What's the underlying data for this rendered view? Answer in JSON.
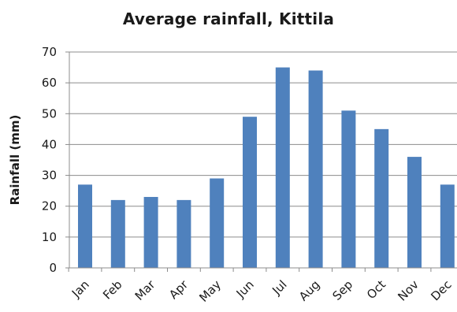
{
  "chart_data": {
    "type": "bar",
    "title": "Average rainfall, Kittila",
    "xlabel": "",
    "ylabel": "Rainfall (mm)",
    "categories": [
      "Jan",
      "Feb",
      "Mar",
      "Apr",
      "May",
      "Jun",
      "Jul",
      "Aug",
      "Sep",
      "Oct",
      "Nov",
      "Dec"
    ],
    "series": [
      {
        "values": [
          27,
          22,
          23,
          22,
          29,
          49,
          65,
          64,
          51,
          45,
          36,
          27
        ]
      }
    ],
    "ylim": [
      0,
      70
    ],
    "yticks": [
      "0",
      "10",
      "20",
      "30",
      "40",
      "50",
      "60",
      "70"
    ],
    "grid": true,
    "legend": "none",
    "bar_color": "#4f81bd",
    "grid_color": "#8c8c8c"
  }
}
